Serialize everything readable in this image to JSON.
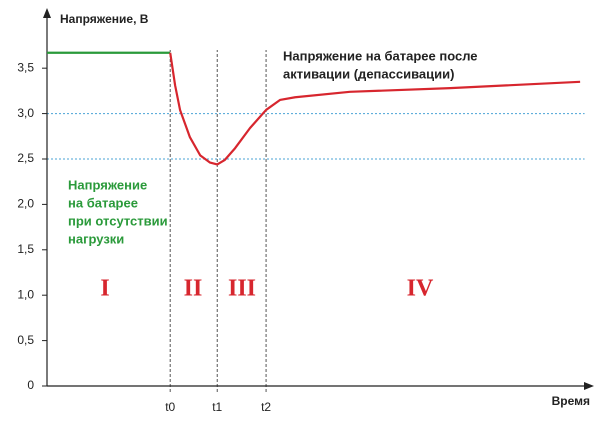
{
  "chart_data": {
    "type": "line",
    "y_label": "Напряжение, В",
    "x_label": "Время",
    "x": [
      0,
      2.75,
      2.86,
      2.97,
      3.19,
      3.42,
      3.64,
      3.8,
      3.97,
      4.2,
      4.53,
      4.89,
      5.2,
      5.54,
      6.76,
      9.0,
      11.9
    ],
    "series": [
      {
        "name": "Напряжение на батарее при отсутствии нагрузки",
        "color": "#2a9a3a",
        "values": [
          3.67,
          3.67,
          null,
          null,
          null,
          null,
          null,
          null,
          null,
          null,
          null,
          null,
          null,
          null,
          null,
          null,
          null
        ]
      },
      {
        "name": "Напряжение на батарее после активации (депассивации)",
        "color": "#d7262e",
        "values": [
          null,
          3.67,
          3.31,
          3.04,
          2.74,
          2.54,
          2.46,
          2.44,
          2.49,
          2.62,
          2.84,
          3.04,
          3.15,
          3.18,
          3.24,
          3.28,
          3.35
        ]
      }
    ],
    "xlim": [
      0,
      12
    ],
    "xticks": [
      {
        "value": 2.75,
        "label": "t0"
      },
      {
        "value": 3.8,
        "label": "t1"
      },
      {
        "value": 4.89,
        "label": "t2"
      }
    ],
    "ylim": [
      0,
      4.1
    ],
    "yticks": [
      0,
      {
        "value": 0.5,
        "label": "0,5"
      },
      {
        "value": 1.0,
        "label": "1,0"
      },
      {
        "value": 1.5,
        "label": "1,5"
      },
      {
        "value": 2.0,
        "label": "2,0"
      },
      {
        "value": 2.5,
        "label": "2,5"
      },
      {
        "value": 3.0,
        "label": "3,0"
      },
      {
        "value": 3.5,
        "label": "3,5"
      }
    ],
    "reference_lines": [
      3.0,
      2.5
    ],
    "annotations": {
      "after_activation": [
        "Напряжение на батарее после",
        "активации (депассивации)"
      ],
      "no_load": [
        "Напряжение",
        "на батарее",
        "при отсутствии",
        "нагрузки"
      ],
      "phases": [
        "I",
        "II",
        "III",
        "IV"
      ]
    }
  }
}
